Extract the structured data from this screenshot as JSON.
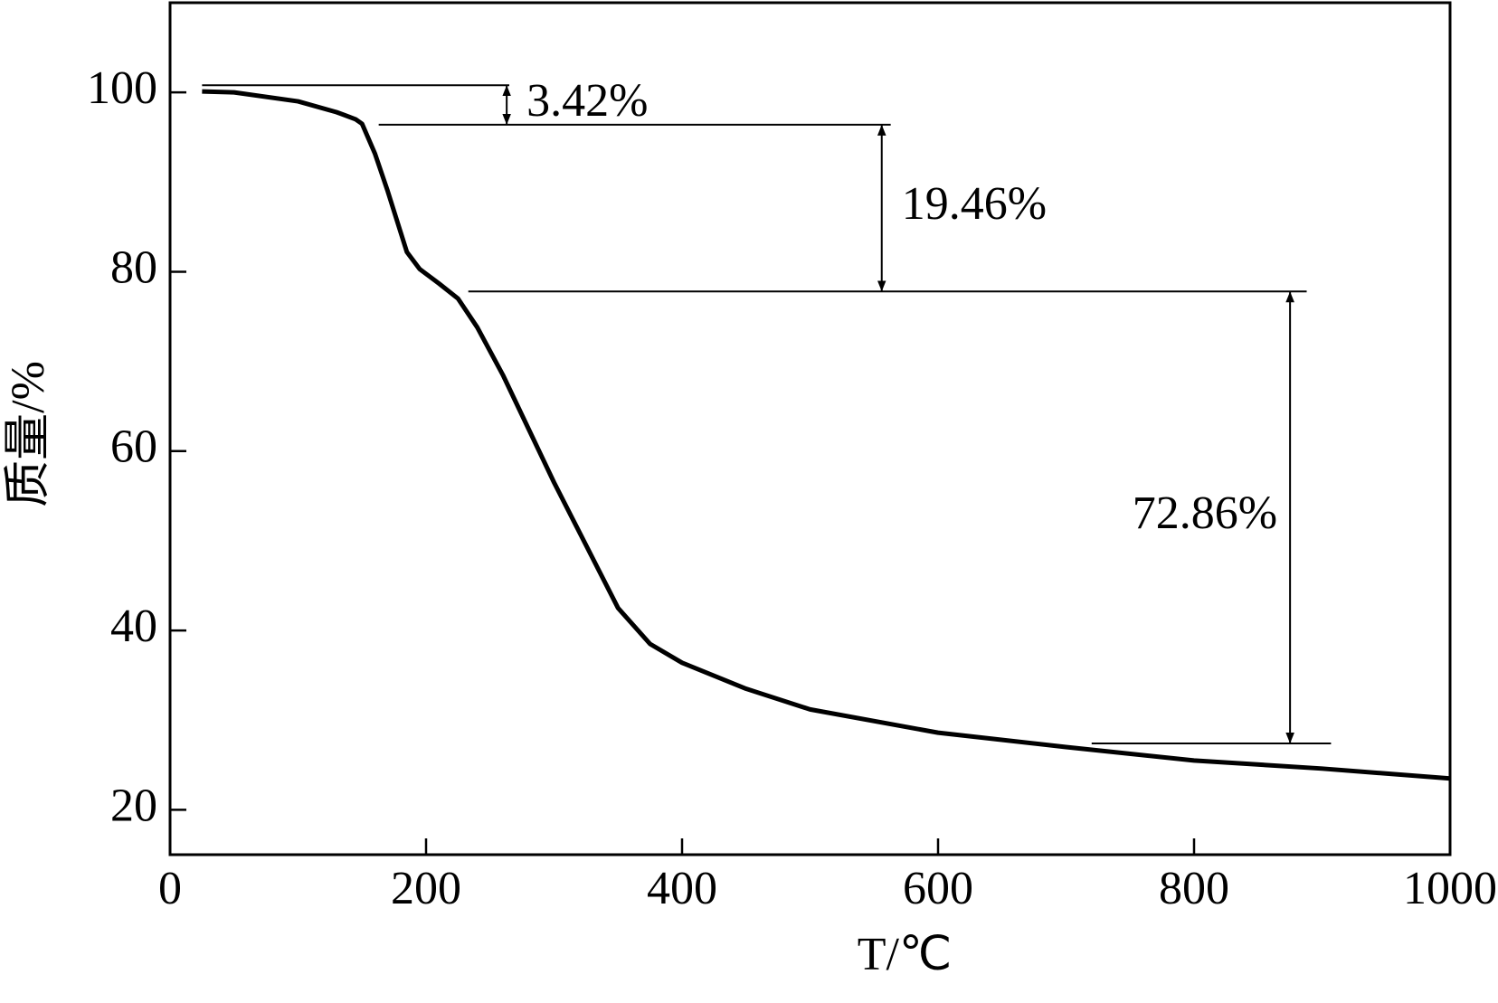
{
  "chart_data": {
    "type": "line",
    "x_label": "T/℃",
    "y_label": "质量/%",
    "xlim": [
      0,
      1000
    ],
    "ylim": [
      15,
      110
    ],
    "xticks": [
      0,
      200,
      400,
      600,
      800,
      1000
    ],
    "yticks": [
      20,
      40,
      60,
      80,
      100
    ],
    "series": [
      {
        "color": "#000000",
        "x": [
          25,
          50,
          100,
          130,
          145,
          150,
          160,
          170,
          185,
          195,
          210,
          225,
          240,
          260,
          280,
          300,
          325,
          350,
          375,
          400,
          450,
          500,
          600,
          700,
          800,
          900,
          1000
        ],
        "values": [
          100.1,
          100,
          99,
          97.8,
          97,
          96.5,
          93.2,
          89,
          82.2,
          80.3,
          78.7,
          77,
          73.8,
          68.5,
          62.5,
          56.5,
          49.5,
          42.5,
          38.5,
          36.4,
          33.5,
          31.2,
          28.6,
          27,
          25.5,
          24.6,
          23.5
        ]
      }
    ],
    "reference_lines": [
      {
        "y": 100.8,
        "x": [
          25,
          265
        ]
      },
      {
        "y": 96.4,
        "x": [
          163,
          563
        ]
      },
      {
        "y": 77.8,
        "x": [
          233,
          888
        ]
      },
      {
        "y": 27.4,
        "x": [
          720,
          907
        ]
      }
    ],
    "annotations": [
      {
        "text": "3.42%",
        "x": 263,
        "y": [
          100.8,
          96.4
        ]
      },
      {
        "text": "19.46%",
        "x": 556,
        "y": [
          96.4,
          77.8
        ]
      },
      {
        "text": "72.86%",
        "x": 875,
        "y": [
          77.8,
          27.4
        ]
      }
    ]
  }
}
